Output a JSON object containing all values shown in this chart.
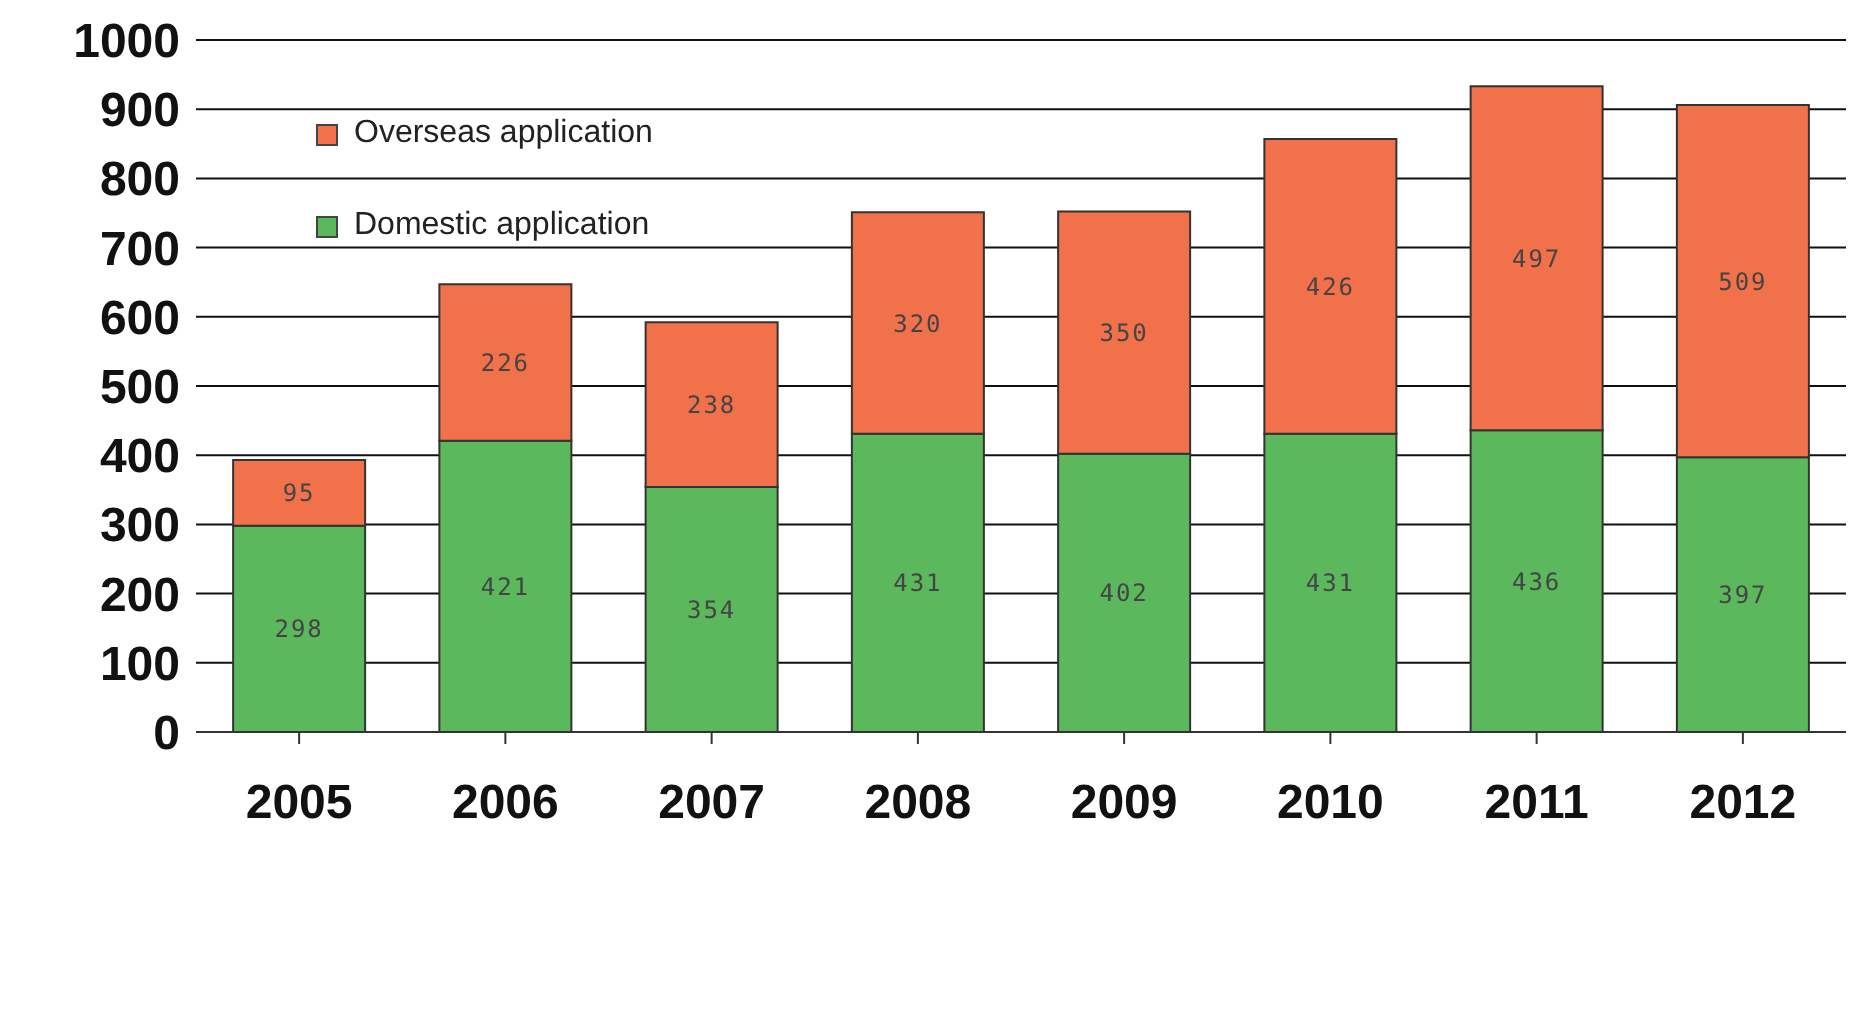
{
  "chart_data": {
    "type": "bar",
    "stacked": true,
    "categories": [
      "2005",
      "2006",
      "2007",
      "2008",
      "2009",
      "2010",
      "2011",
      "2012"
    ],
    "series": [
      {
        "name": "Domestic application",
        "color": "#5cb85c",
        "values": [
          298,
          421,
          354,
          431,
          402,
          431,
          436,
          397
        ]
      },
      {
        "name": "Overseas application",
        "color": "#f0714a",
        "values": [
          95,
          226,
          238,
          320,
          350,
          426,
          497,
          509
        ]
      }
    ],
    "ylim": [
      0,
      1000
    ],
    "yticks": [
      0,
      100,
      200,
      300,
      400,
      500,
      600,
      700,
      800,
      900,
      1000
    ],
    "grid": "y",
    "legend": "top left",
    "data_labels": true
  }
}
